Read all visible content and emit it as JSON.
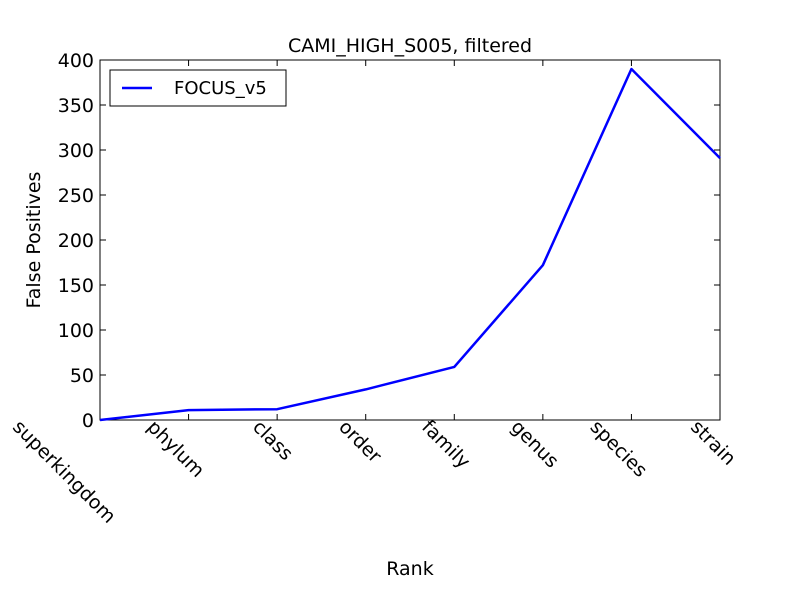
{
  "chart_data": {
    "type": "line",
    "title": "CAMI_HIGH_S005, filtered",
    "xlabel": "Rank",
    "ylabel": "False Positives",
    "categories": [
      "superkingdom",
      "phylum",
      "class",
      "order",
      "family",
      "genus",
      "species",
      "strain"
    ],
    "ylim": [
      0,
      400
    ],
    "yticks": [
      "0",
      "50",
      "100",
      "150",
      "200",
      "250",
      "300",
      "350",
      "400"
    ],
    "grid": false,
    "legend_position": "top-left",
    "series": [
      {
        "name": "FOCUS_v5",
        "color": "#0000ff",
        "values": [
          0,
          11,
          12,
          34,
          59,
          172,
          390,
          291
        ]
      }
    ]
  }
}
